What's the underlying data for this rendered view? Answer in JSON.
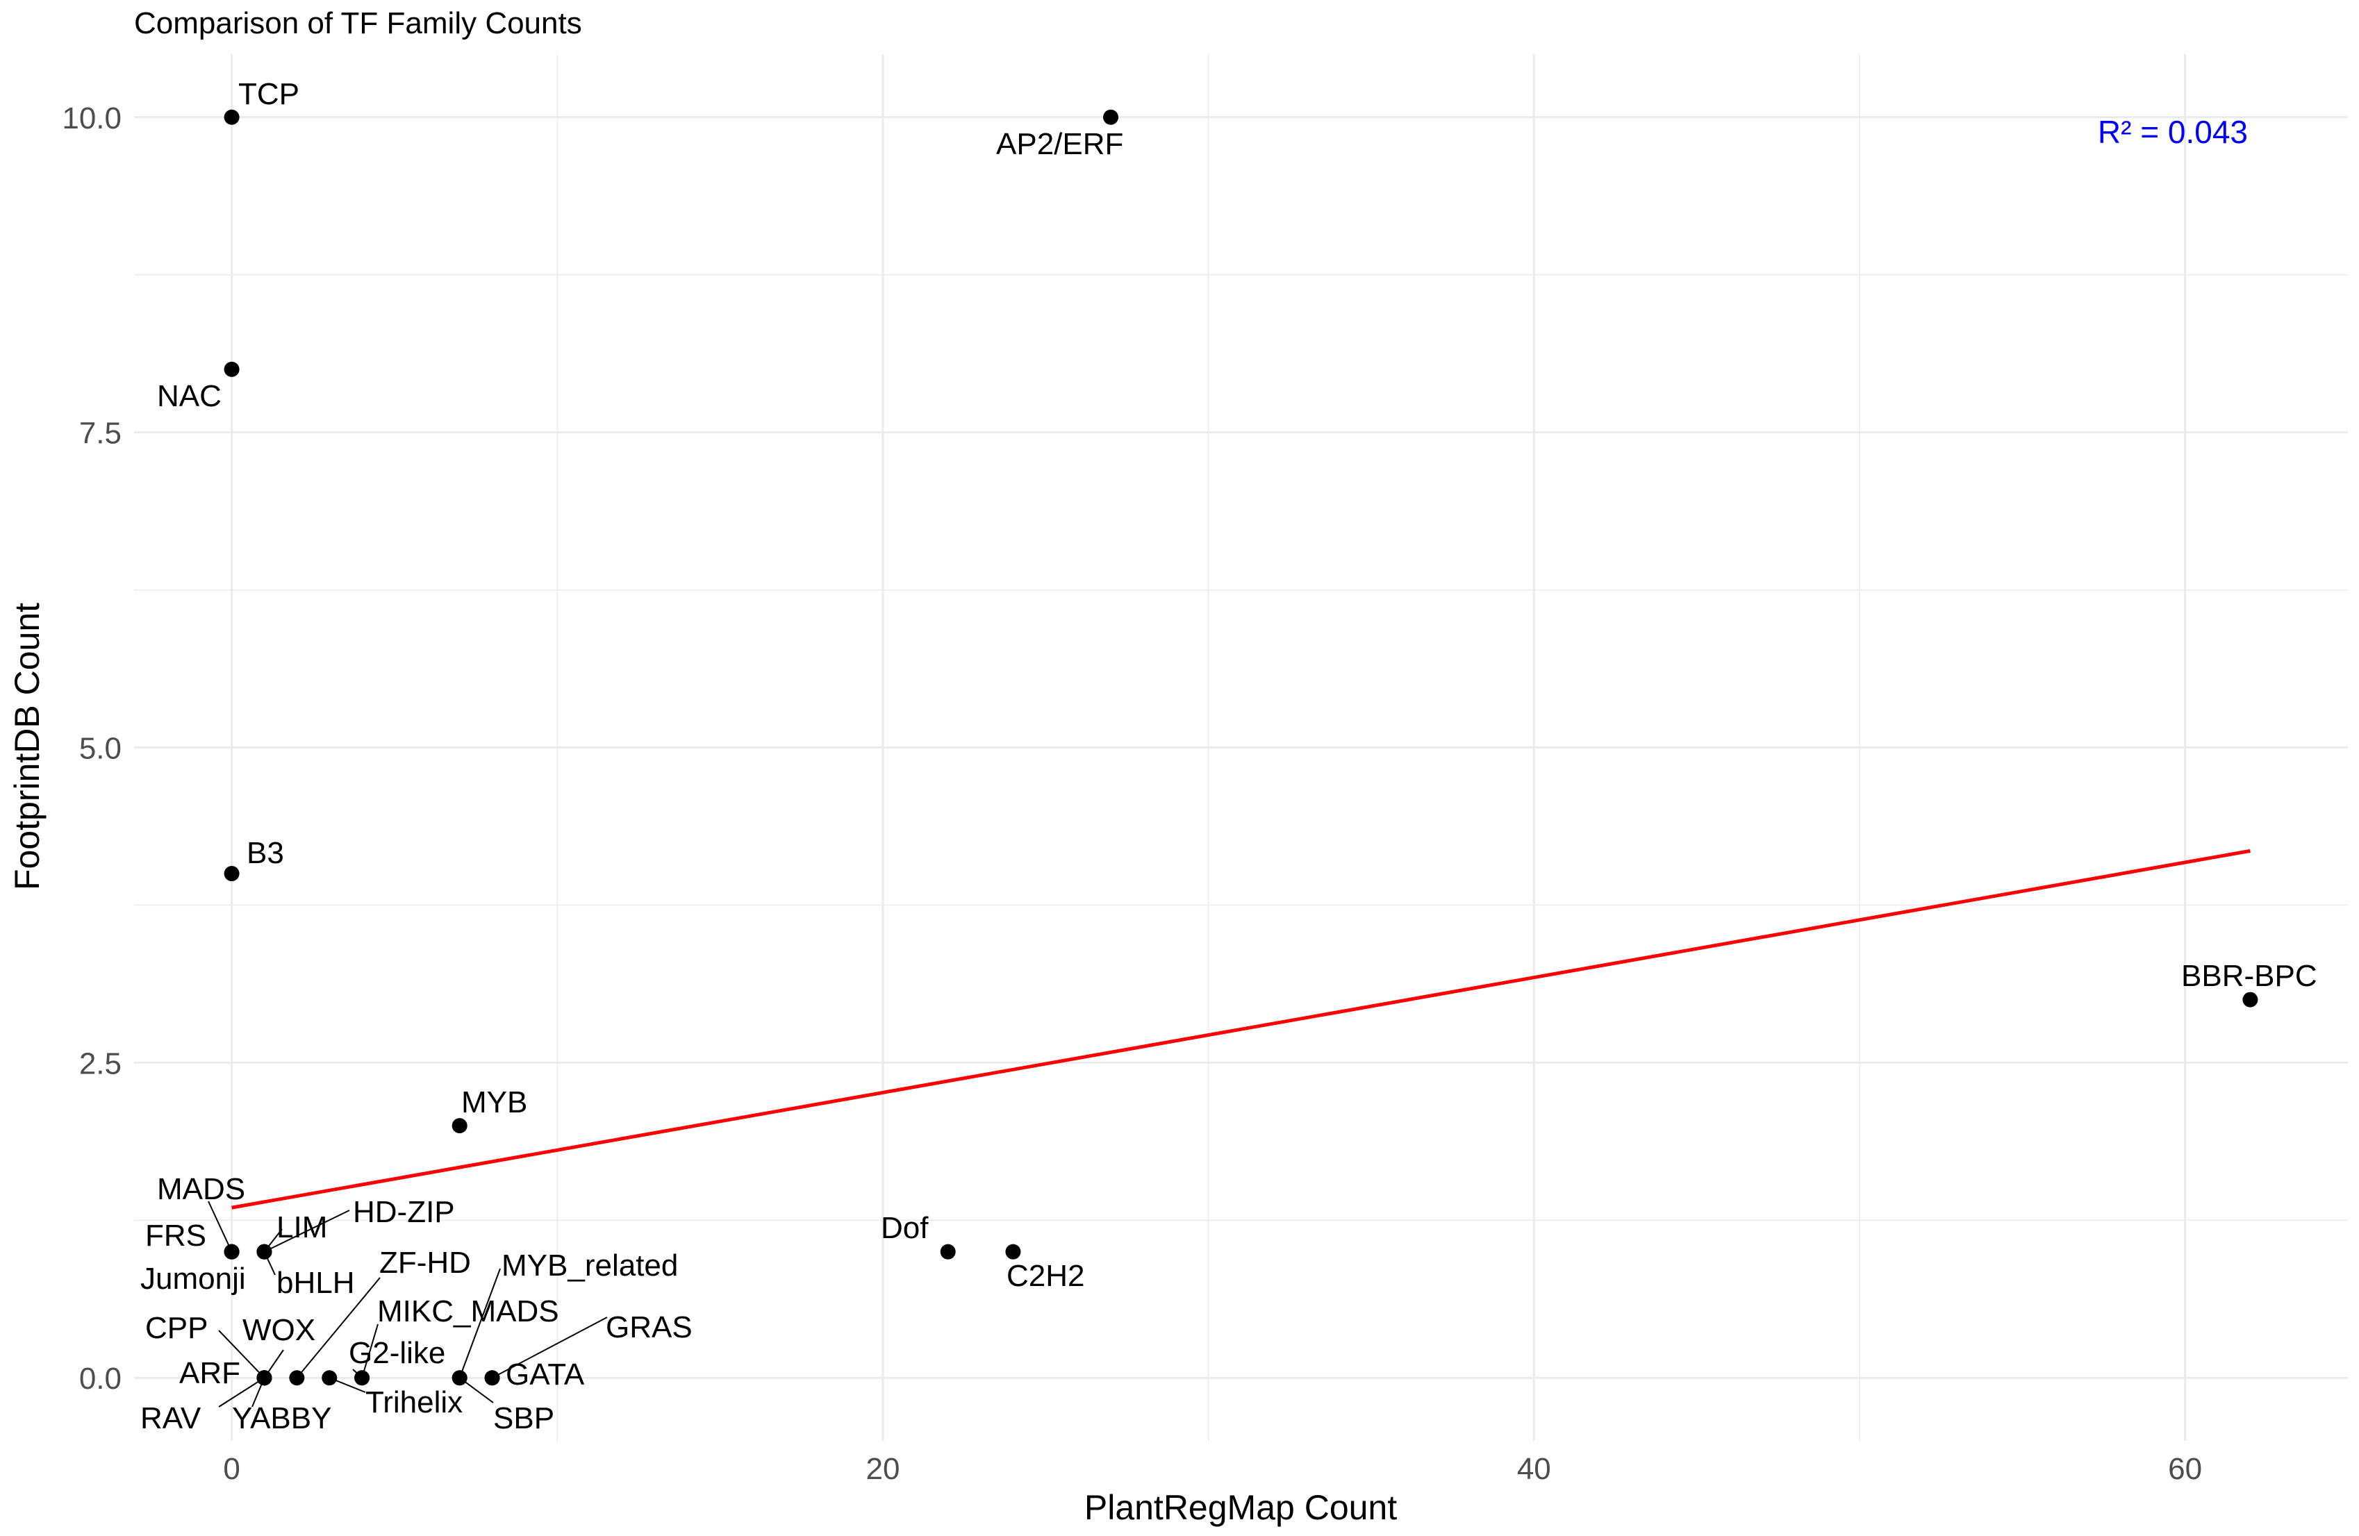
{
  "chart_data": {
    "type": "scatter",
    "title": "Comparison of TF Family Counts",
    "xlabel": "PlantRegMap Count",
    "ylabel": "FootprintDB Count",
    "xlim": [
      -3,
      65
    ],
    "ylim": [
      -0.5,
      10.5
    ],
    "x_ticks": [
      0,
      20,
      40,
      60
    ],
    "x_tick_labels": [
      "0",
      "20",
      "40",
      "60"
    ],
    "y_ticks": [
      0,
      2.5,
      5,
      7.5,
      10
    ],
    "y_tick_labels": [
      "0.0",
      "2.5",
      "5.0",
      "7.5",
      "10.0"
    ],
    "grid": true,
    "legend": "none",
    "points": [
      {
        "label": "TCP",
        "x": 0,
        "y": 10
      },
      {
        "label": "AP2/ERF",
        "x": 27,
        "y": 10
      },
      {
        "label": "NAC",
        "x": 0,
        "y": 8
      },
      {
        "label": "B3",
        "x": 0,
        "y": 4
      },
      {
        "label": "BBR-BPC",
        "x": 62,
        "y": 3
      },
      {
        "label": "MYB",
        "x": 7,
        "y": 2
      },
      {
        "label": "Dof",
        "x": 22,
        "y": 1
      },
      {
        "label": "C2H2",
        "x": 24,
        "y": 1
      },
      {
        "label": "MADS",
        "x": 0,
        "y": 1
      },
      {
        "label": "FRS",
        "x": 0,
        "y": 1
      },
      {
        "label": "Jumonji",
        "x": 0,
        "y": 1
      },
      {
        "label": "LIM",
        "x": 1,
        "y": 1
      },
      {
        "label": "HD-ZIP",
        "x": 1,
        "y": 1
      },
      {
        "label": "bHLH",
        "x": 1,
        "y": 1
      },
      {
        "label": "CPP",
        "x": 1,
        "y": 0
      },
      {
        "label": "ARF",
        "x": 1,
        "y": 0
      },
      {
        "label": "RAV",
        "x": 1,
        "y": 0
      },
      {
        "label": "YABBY",
        "x": 1,
        "y": 0
      },
      {
        "label": "WOX",
        "x": 1,
        "y": 0
      },
      {
        "label": "ZF-HD",
        "x": 2,
        "y": 0
      },
      {
        "label": "Trihelix",
        "x": 3,
        "y": 0
      },
      {
        "label": "MIKC_MADS",
        "x": 4,
        "y": 0
      },
      {
        "label": "G2-like",
        "x": 4,
        "y": 0
      },
      {
        "label": "MYB_related",
        "x": 7,
        "y": 0
      },
      {
        "label": "SBP",
        "x": 7,
        "y": 0
      },
      {
        "label": "GATA",
        "x": 8,
        "y": 0
      },
      {
        "label": "GRAS",
        "x": 8,
        "y": 0
      }
    ],
    "regression_line": {
      "x": [
        0,
        62
      ],
      "y": [
        1.35,
        4.18
      ],
      "color": "#ff0000"
    },
    "annotation": {
      "text": "R² = 0.043",
      "color": "#0000ff",
      "x": 62,
      "y": 9.9
    },
    "point_color": "#000000",
    "grid_color": "#ebebeb"
  }
}
